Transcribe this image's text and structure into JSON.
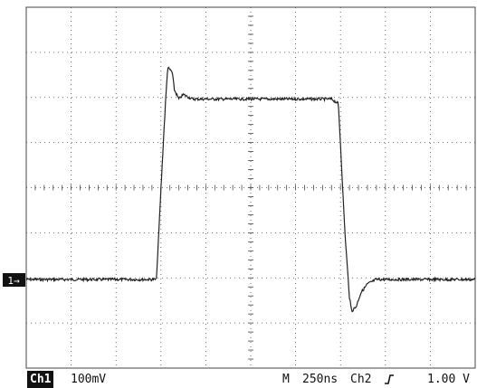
{
  "channel_marker": "1→",
  "status": {
    "channel": "Ch1",
    "volts_per_div": "100mV",
    "mode": "M",
    "time_per_div": "250ns",
    "trigger_source": "Ch2",
    "trigger_icon": "rising-edge-icon",
    "trigger_level": "1.00 V"
  },
  "colors": {
    "trace": "#222222",
    "grid": "#444444",
    "background": "#ffffff"
  },
  "chart_data": {
    "type": "line",
    "grid": {
      "divisions_x": 10,
      "divisions_y": 8,
      "visible": true
    },
    "units": {
      "x": "div",
      "y": "div relative to channel 1 ground marker"
    },
    "series": [
      {
        "x": [
          0,
          2.9,
          3.0,
          3.1,
          3.15,
          3.25,
          3.3,
          3.4,
          3.5,
          3.7,
          4.0,
          5.0,
          6.0,
          6.8,
          6.95,
          7.0,
          7.1,
          7.2,
          7.25,
          7.35,
          7.45,
          7.6,
          7.8,
          8.0,
          9.0,
          10.0
        ],
        "y": [
          0,
          0,
          2,
          3.9,
          4.7,
          4.6,
          4.2,
          4.0,
          4.1,
          4.0,
          4.0,
          4.0,
          4.0,
          4.0,
          3.9,
          3.0,
          1.0,
          -0.4,
          -0.7,
          -0.6,
          -0.3,
          -0.1,
          0,
          0,
          0,
          0
        ]
      }
    ]
  }
}
